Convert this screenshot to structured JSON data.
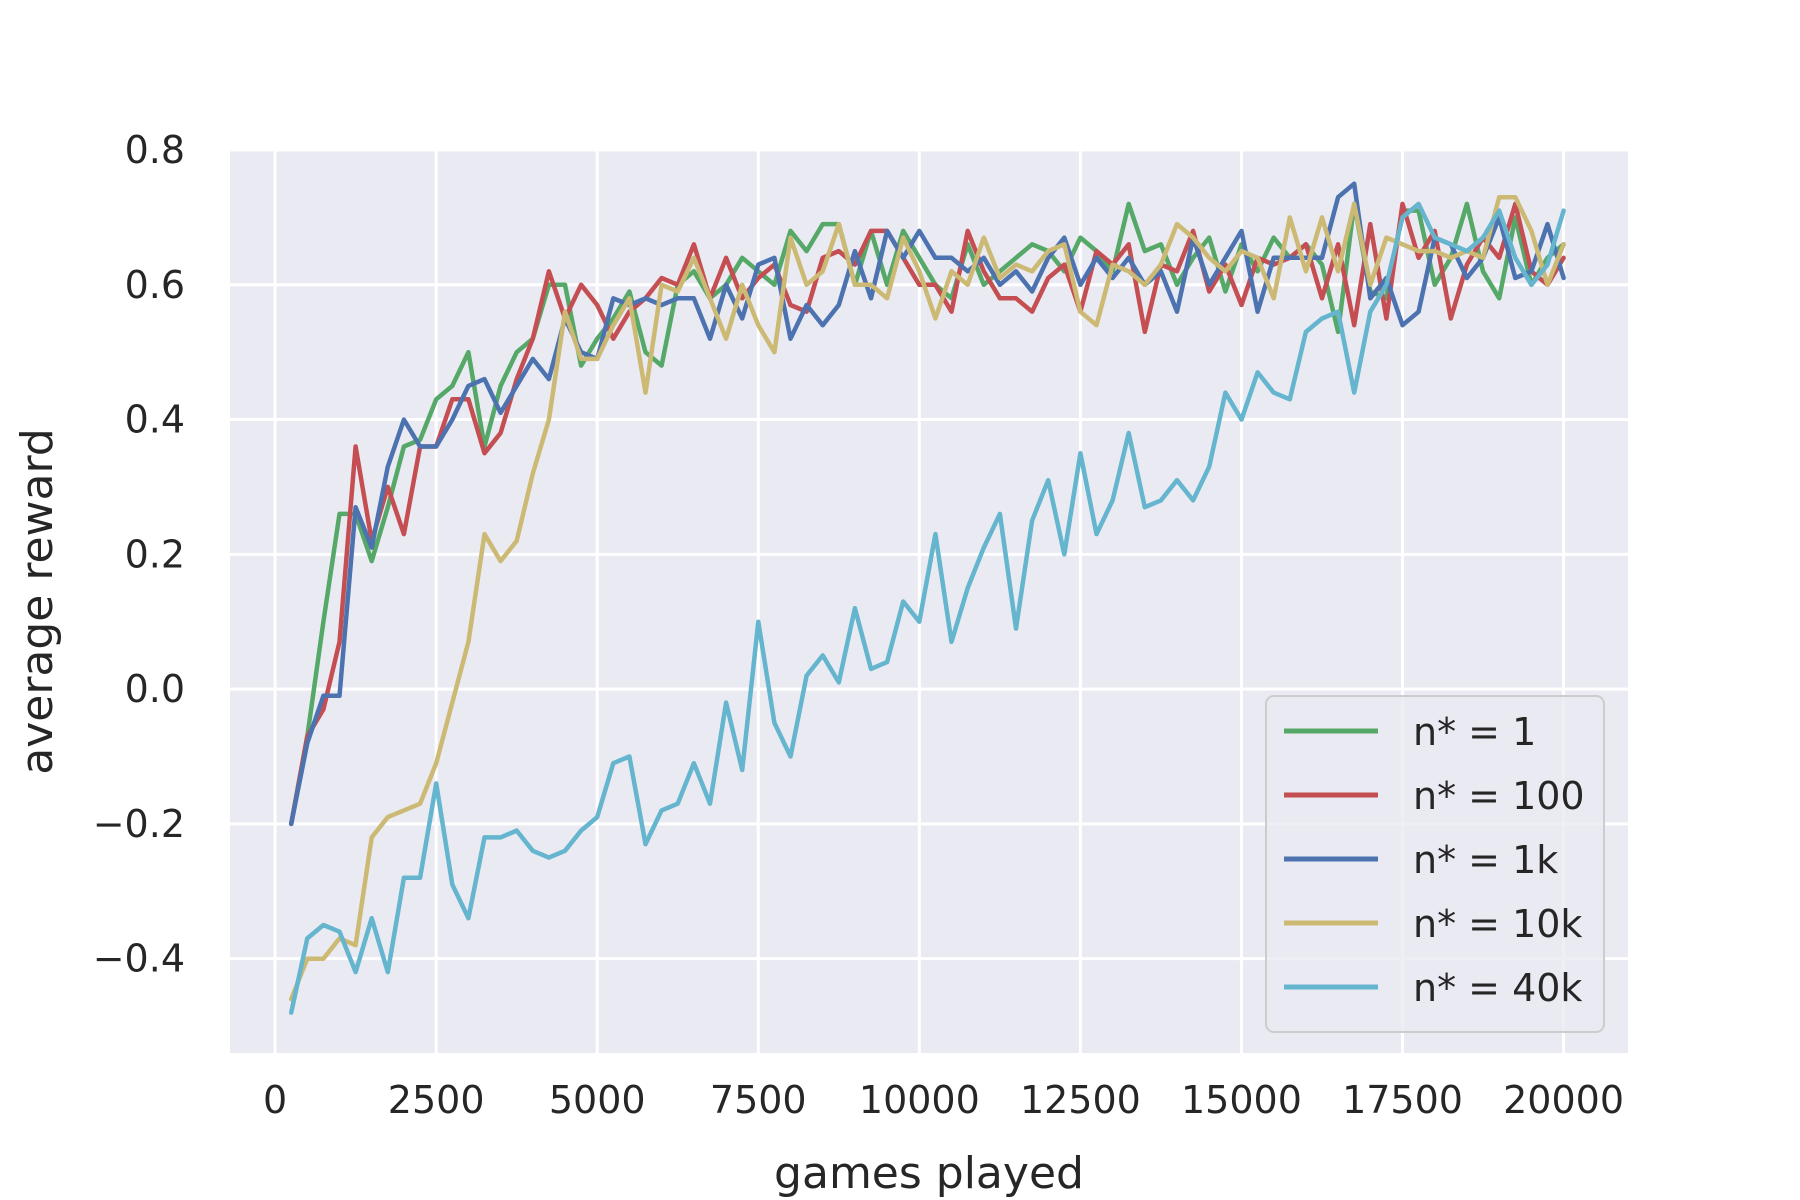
{
  "chart_data": {
    "type": "line",
    "title": "",
    "xlabel": "games played",
    "ylabel": "average reward",
    "xlim": [
      -700,
      21000
    ],
    "ylim": [
      -0.54,
      0.8
    ],
    "xticks": [
      0,
      2500,
      5000,
      7500,
      10000,
      12500,
      15000,
      17500,
      20000
    ],
    "xtick_labels": [
      "0",
      "2500",
      "5000",
      "7500",
      "10000",
      "12500",
      "15000",
      "17500",
      "20000"
    ],
    "yticks": [
      -0.4,
      -0.2,
      0.0,
      0.2,
      0.4,
      0.6,
      0.8
    ],
    "ytick_labels": [
      "−0.4",
      "−0.2",
      "0.0",
      "0.2",
      "0.4",
      "0.6",
      "0.8"
    ],
    "grid": true,
    "background": "#eaeaf2",
    "legend_position": "lower-right",
    "x": [
      250,
      500,
      750,
      1000,
      1250,
      1500,
      1750,
      2000,
      2250,
      2500,
      2750,
      3000,
      3250,
      3500,
      3750,
      4000,
      4250,
      4500,
      4750,
      5000,
      5250,
      5500,
      5750,
      6000,
      6250,
      6500,
      6750,
      7000,
      7250,
      7500,
      7750,
      8000,
      8250,
      8500,
      8750,
      9000,
      9250,
      9500,
      9750,
      10000,
      10250,
      10500,
      10750,
      11000,
      11250,
      11500,
      11750,
      12000,
      12250,
      12500,
      12750,
      13000,
      13250,
      13500,
      13750,
      14000,
      14250,
      14500,
      14750,
      15000,
      15250,
      15500,
      15750,
      16000,
      16250,
      16500,
      16750,
      17000,
      17250,
      17500,
      17750,
      18000,
      18250,
      18500,
      18750,
      19000,
      19250,
      19500,
      19750,
      20000
    ],
    "series": [
      {
        "name": "n* = 1",
        "color": "#55a868",
        "values": [
          -0.2,
          -0.07,
          0.1,
          0.26,
          0.26,
          0.19,
          0.27,
          0.36,
          0.37,
          0.43,
          0.45,
          0.5,
          0.36,
          0.45,
          0.5,
          0.52,
          0.6,
          0.6,
          0.48,
          0.52,
          0.55,
          0.59,
          0.5,
          0.48,
          0.6,
          0.62,
          0.58,
          0.6,
          0.64,
          0.62,
          0.6,
          0.68,
          0.65,
          0.69,
          0.69,
          0.6,
          0.68,
          0.6,
          0.68,
          0.64,
          0.6,
          0.58,
          0.66,
          0.6,
          0.62,
          0.64,
          0.66,
          0.65,
          0.62,
          0.67,
          0.65,
          0.62,
          0.72,
          0.65,
          0.66,
          0.6,
          0.64,
          0.67,
          0.59,
          0.66,
          0.62,
          0.67,
          0.64,
          0.66,
          0.63,
          0.53,
          0.72,
          0.59,
          0.58,
          0.71,
          0.71,
          0.6,
          0.64,
          0.72,
          0.62,
          0.58,
          0.7,
          0.6,
          0.64,
          0.66
        ]
      },
      {
        "name": "n* = 100",
        "color": "#c44e52",
        "values": [
          -0.2,
          -0.07,
          -0.03,
          0.07,
          0.36,
          0.22,
          0.3,
          0.23,
          0.36,
          0.36,
          0.43,
          0.43,
          0.35,
          0.38,
          0.46,
          0.52,
          0.62,
          0.55,
          0.6,
          0.57,
          0.52,
          0.56,
          0.58,
          0.61,
          0.6,
          0.66,
          0.58,
          0.64,
          0.58,
          0.61,
          0.63,
          0.57,
          0.56,
          0.64,
          0.65,
          0.63,
          0.68,
          0.68,
          0.64,
          0.6,
          0.6,
          0.56,
          0.68,
          0.62,
          0.58,
          0.58,
          0.56,
          0.61,
          0.63,
          0.56,
          0.65,
          0.63,
          0.66,
          0.53,
          0.63,
          0.62,
          0.68,
          0.59,
          0.63,
          0.57,
          0.64,
          0.63,
          0.64,
          0.66,
          0.58,
          0.66,
          0.54,
          0.69,
          0.55,
          0.72,
          0.64,
          0.68,
          0.55,
          0.63,
          0.67,
          0.64,
          0.72,
          0.62,
          0.6,
          0.64
        ]
      },
      {
        "name": "n* = 1k",
        "color": "#4c72b0",
        "values": [
          -0.2,
          -0.08,
          -0.01,
          -0.01,
          0.27,
          0.21,
          0.33,
          0.4,
          0.36,
          0.36,
          0.4,
          0.45,
          0.46,
          0.41,
          0.45,
          0.49,
          0.46,
          0.55,
          0.5,
          0.49,
          0.58,
          0.57,
          0.58,
          0.57,
          0.58,
          0.58,
          0.52,
          0.6,
          0.55,
          0.63,
          0.64,
          0.52,
          0.57,
          0.54,
          0.57,
          0.65,
          0.58,
          0.68,
          0.64,
          0.68,
          0.64,
          0.64,
          0.62,
          0.64,
          0.6,
          0.62,
          0.59,
          0.64,
          0.67,
          0.6,
          0.64,
          0.61,
          0.64,
          0.6,
          0.62,
          0.56,
          0.67,
          0.6,
          0.64,
          0.68,
          0.56,
          0.64,
          0.64,
          0.64,
          0.64,
          0.73,
          0.75,
          0.58,
          0.61,
          0.54,
          0.56,
          0.67,
          0.66,
          0.61,
          0.64,
          0.7,
          0.61,
          0.62,
          0.69,
          0.61
        ]
      },
      {
        "name": "n* = 10k",
        "color": "#ccb974",
        "values": [
          -0.46,
          -0.4,
          -0.4,
          -0.37,
          -0.38,
          -0.22,
          -0.19,
          -0.18,
          -0.17,
          -0.11,
          -0.02,
          0.07,
          0.23,
          0.19,
          0.22,
          0.32,
          0.4,
          0.56,
          0.49,
          0.49,
          0.54,
          0.58,
          0.44,
          0.6,
          0.59,
          0.64,
          0.58,
          0.52,
          0.6,
          0.54,
          0.5,
          0.67,
          0.6,
          0.62,
          0.69,
          0.6,
          0.6,
          0.58,
          0.67,
          0.62,
          0.55,
          0.62,
          0.6,
          0.67,
          0.61,
          0.63,
          0.62,
          0.65,
          0.66,
          0.56,
          0.54,
          0.63,
          0.62,
          0.6,
          0.63,
          0.69,
          0.67,
          0.64,
          0.62,
          0.65,
          0.64,
          0.58,
          0.7,
          0.62,
          0.7,
          0.62,
          0.72,
          0.6,
          0.67,
          0.66,
          0.65,
          0.65,
          0.64,
          0.65,
          0.64,
          0.73,
          0.73,
          0.68,
          0.6,
          0.66
        ]
      },
      {
        "name": "n* = 40k",
        "color": "#64b5cd",
        "values": [
          -0.48,
          -0.37,
          -0.35,
          -0.36,
          -0.42,
          -0.34,
          -0.42,
          -0.28,
          -0.28,
          -0.14,
          -0.29,
          -0.34,
          -0.22,
          -0.22,
          -0.21,
          -0.24,
          -0.25,
          -0.24,
          -0.21,
          -0.19,
          -0.11,
          -0.1,
          -0.23,
          -0.18,
          -0.17,
          -0.11,
          -0.17,
          -0.02,
          -0.12,
          0.1,
          -0.05,
          -0.1,
          0.02,
          0.05,
          0.01,
          0.12,
          0.03,
          0.04,
          0.13,
          0.1,
          0.23,
          0.07,
          0.15,
          0.21,
          0.26,
          0.09,
          0.25,
          0.31,
          0.2,
          0.35,
          0.23,
          0.28,
          0.38,
          0.27,
          0.28,
          0.31,
          0.28,
          0.33,
          0.44,
          0.4,
          0.47,
          0.44,
          0.43,
          0.53,
          0.55,
          0.56,
          0.44,
          0.56,
          0.6,
          0.7,
          0.72,
          0.67,
          0.66,
          0.65,
          0.67,
          0.71,
          0.64,
          0.6,
          0.63,
          0.71
        ]
      }
    ]
  }
}
